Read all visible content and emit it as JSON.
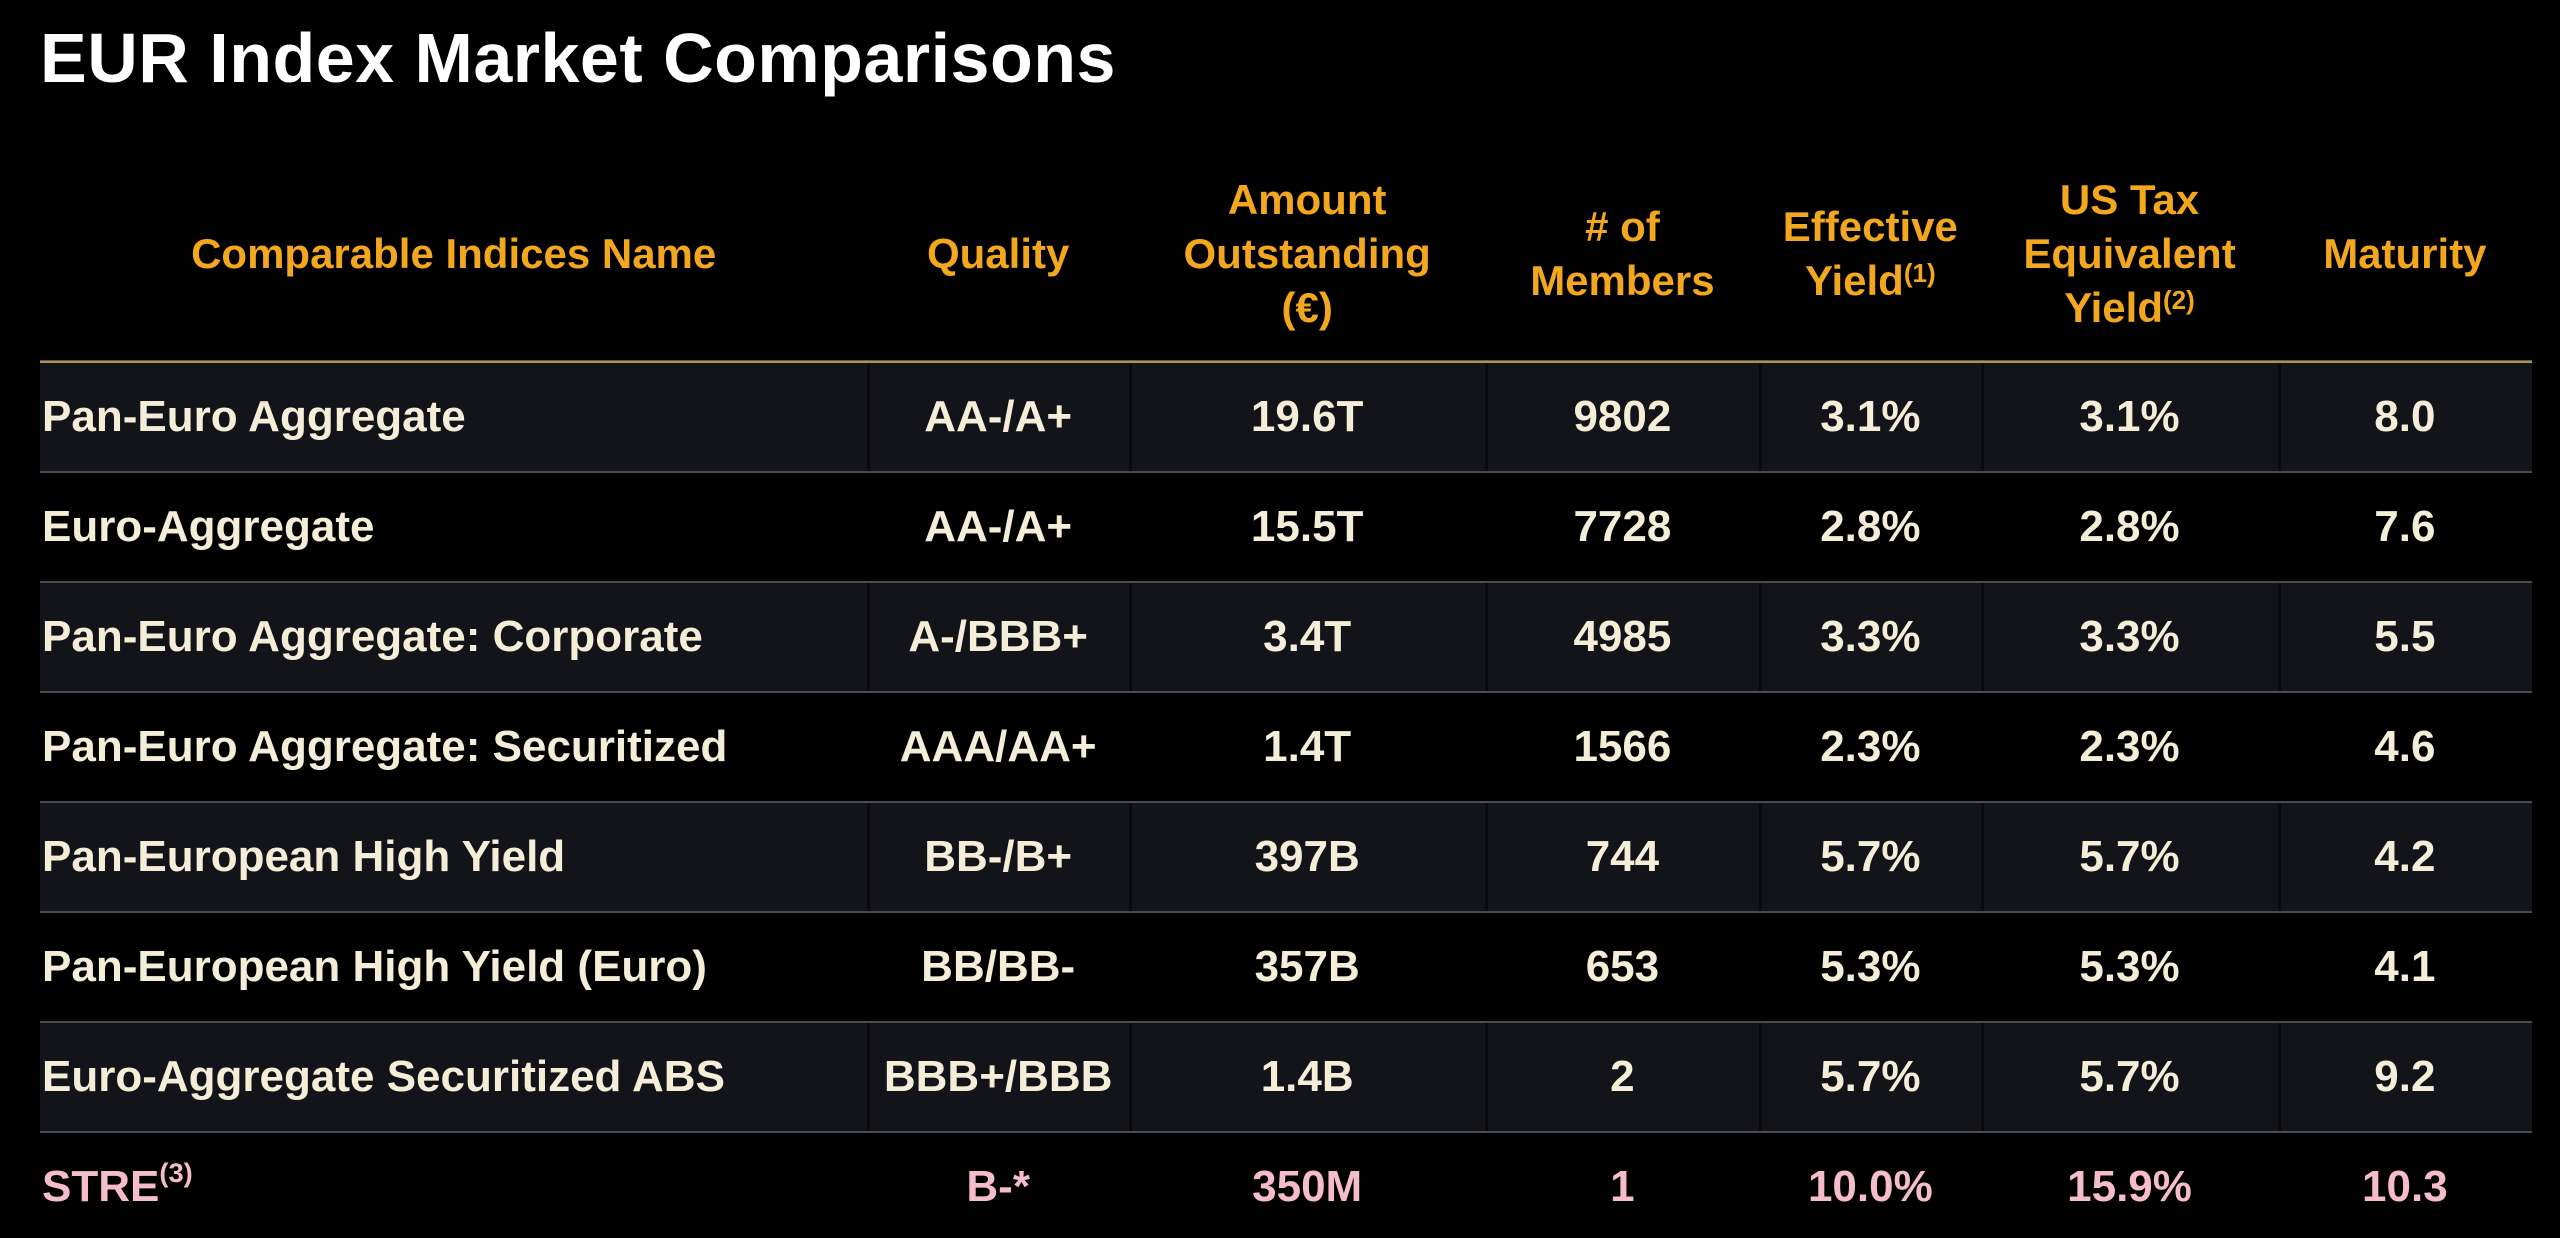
{
  "title": "EUR Index Market Comparisons",
  "colors": {
    "background": "#000000",
    "title_text": "#FFFFFF",
    "header_text": "#F2A71F",
    "header_rule": "#A8925E",
    "row_text": "#F4EDD8",
    "alt_row_background": "#13131A",
    "row_divider": "#4A4A51",
    "highlight_row_text": "#F5BDCB"
  },
  "table": {
    "columns": [
      {
        "label": "Comparable Indices Name",
        "sup": ""
      },
      {
        "label": "Quality",
        "sup": ""
      },
      {
        "label": "Amount\nOutstanding\n(€)",
        "sup": ""
      },
      {
        "label": "# of\nMembers",
        "sup": ""
      },
      {
        "label": "Effective\nYield",
        "sup": "(1)"
      },
      {
        "label": "US Tax\nEquivalent\nYield",
        "sup": "(2)"
      },
      {
        "label": "Maturity",
        "sup": ""
      }
    ],
    "rows": [
      {
        "name": "Pan-Euro Aggregate",
        "name_sup": "",
        "quality": "AA-/A+",
        "amount_outstanding": "19.6T",
        "members": "9802",
        "effective_yield": "3.1%",
        "us_tax_equivalent_yield": "3.1%",
        "maturity": "8.0"
      },
      {
        "name": "Euro-Aggregate",
        "name_sup": "",
        "quality": "AA-/A+",
        "amount_outstanding": "15.5T",
        "members": "7728",
        "effective_yield": "2.8%",
        "us_tax_equivalent_yield": "2.8%",
        "maturity": "7.6"
      },
      {
        "name": "Pan-Euro Aggregate: Corporate",
        "name_sup": "",
        "quality": "A-/BBB+",
        "amount_outstanding": "3.4T",
        "members": "4985",
        "effective_yield": "3.3%",
        "us_tax_equivalent_yield": "3.3%",
        "maturity": "5.5"
      },
      {
        "name": "Pan-Euro Aggregate: Securitized",
        "name_sup": "",
        "quality": "AAA/AA+",
        "amount_outstanding": "1.4T",
        "members": "1566",
        "effective_yield": "2.3%",
        "us_tax_equivalent_yield": "2.3%",
        "maturity": "4.6"
      },
      {
        "name": "Pan-European High Yield",
        "name_sup": "",
        "quality": "BB-/B+",
        "amount_outstanding": "397B",
        "members": "744",
        "effective_yield": "5.7%",
        "us_tax_equivalent_yield": "5.7%",
        "maturity": "4.2"
      },
      {
        "name": "Pan-European High Yield (Euro)",
        "name_sup": "",
        "quality": "BB/BB-",
        "amount_outstanding": "357B",
        "members": "653",
        "effective_yield": "5.3%",
        "us_tax_equivalent_yield": "5.3%",
        "maturity": "4.1"
      },
      {
        "name": "Euro-Aggregate Securitized ABS",
        "name_sup": "",
        "quality": "BBB+/BBB",
        "amount_outstanding": "1.4B",
        "members": "2",
        "effective_yield": "5.7%",
        "us_tax_equivalent_yield": "5.7%",
        "maturity": "9.2"
      },
      {
        "name": "STRE",
        "name_sup": "(3)",
        "quality": "B-*",
        "amount_outstanding": "350M",
        "members": "1",
        "effective_yield": "10.0%",
        "us_tax_equivalent_yield": "15.9%",
        "maturity": "10.3"
      }
    ]
  }
}
